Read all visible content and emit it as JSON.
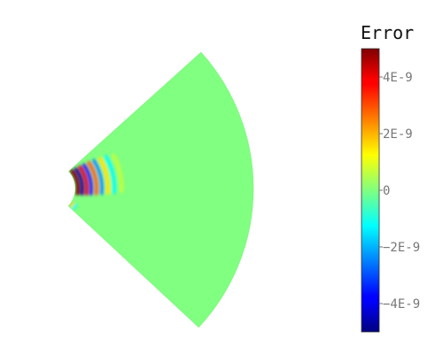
{
  "chart_data": {
    "type": "heatmap",
    "title": "",
    "xlabel": "",
    "ylabel": "",
    "colormap": "jet",
    "colorbar": {
      "title": "Error",
      "min": -5e-09,
      "max": 5e-09,
      "ticks": [
        {
          "value": 4e-09,
          "label": "4E-9"
        },
        {
          "value": 2e-09,
          "label": "2E-9"
        },
        {
          "value": 0,
          "label": "0"
        },
        {
          "value": -2e-09,
          "label": "−2E-9"
        },
        {
          "value": -4e-09,
          "label": "−4E-9"
        }
      ]
    },
    "field": {
      "background_value": 0,
      "description_type": "annular-sector",
      "note_values": {
        "peak_positive": 5e-09,
        "peak_negative": -5e-09
      }
    }
  }
}
